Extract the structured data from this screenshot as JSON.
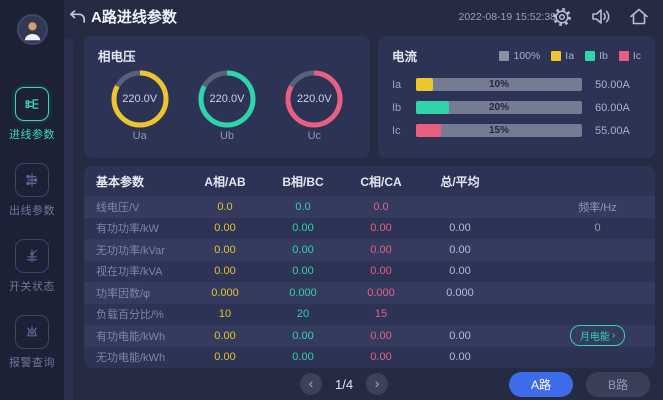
{
  "colors": {
    "yellow": "#edc52e",
    "teal": "#31d3ab",
    "pink": "#e85f82",
    "track_gray": "#747b92",
    "legend_gray": "#8a90a4",
    "accent_blue": "#3d6bea",
    "active_teal": "#3bd8b0"
  },
  "header": {
    "title": "A路进线参数",
    "timestamp": "2022-08-19 15:52:38"
  },
  "sidebar": {
    "items": [
      {
        "label": "进线参数",
        "active": true
      },
      {
        "label": "出线参数",
        "active": false
      },
      {
        "label": "开关状态",
        "active": false
      },
      {
        "label": "报警查询",
        "active": false
      }
    ]
  },
  "voltage_panel": {
    "title": "相电压",
    "gauges": [
      {
        "label": "Ua",
        "value": "220.0V",
        "color": "#edc52e"
      },
      {
        "label": "Ub",
        "value": "220.0V",
        "color": "#31d3ab"
      },
      {
        "label": "Uc",
        "value": "220.0V",
        "color": "#e85f82"
      }
    ]
  },
  "current_panel": {
    "title": "电流",
    "legend": [
      {
        "label": "100%",
        "color": "#8a90a4"
      },
      {
        "label": "Ia",
        "color": "#edc52e"
      },
      {
        "label": "Ib",
        "color": "#31d3ab"
      },
      {
        "label": "Ic",
        "color": "#e85f82"
      }
    ],
    "bars": [
      {
        "label": "Ia",
        "percent": 10,
        "percent_label": "10%",
        "value": "50.00A",
        "color": "#edc52e"
      },
      {
        "label": "Ib",
        "percent": 20,
        "percent_label": "20%",
        "value": "60.00A",
        "color": "#31d3ab"
      },
      {
        "label": "Ic",
        "percent": 15,
        "percent_label": "15%",
        "value": "55.00A",
        "color": "#e85f82"
      }
    ]
  },
  "table": {
    "headers": [
      "基本参数",
      "A相/AB",
      "B相/BC",
      "C相/CA",
      "总/平均"
    ],
    "rows": [
      {
        "label": "线电压/V",
        "a": "0.0",
        "b": "0.0",
        "c": "0.0",
        "total": "",
        "extra": "频率/Hz"
      },
      {
        "label": "有功功率/kW",
        "a": "0.00",
        "b": "0.00",
        "c": "0.00",
        "total": "0.00",
        "extra": "0"
      },
      {
        "label": "无功功率/kVar",
        "a": "0.00",
        "b": "0.00",
        "c": "0.00",
        "total": "0.00",
        "extra": ""
      },
      {
        "label": "视在功率/kVA",
        "a": "0.00",
        "b": "0.00",
        "c": "0.00",
        "total": "0.00",
        "extra": ""
      },
      {
        "label": "功率因数/φ",
        "a": "0.000",
        "b": "0.000",
        "c": "0.000",
        "total": "0.000",
        "extra": ""
      },
      {
        "label": "负载百分比/%",
        "a": "10",
        "b": "20",
        "c": "15",
        "total": "",
        "extra": ""
      },
      {
        "label": "有功电能/kWh",
        "a": "0.00",
        "b": "0.00",
        "c": "0.00",
        "total": "0.00",
        "extra": ""
      },
      {
        "label": "无功电能/kWh",
        "a": "0.00",
        "b": "0.00",
        "c": "0.00",
        "total": "0.00",
        "extra": ""
      }
    ],
    "month_energy_button": {
      "label": "月电能",
      "arrow": "›"
    }
  },
  "footer": {
    "page": "1/4",
    "prev": "‹",
    "next": "›",
    "route_buttons": [
      {
        "label": "A路",
        "active": true
      },
      {
        "label": "B路",
        "active": false
      }
    ]
  }
}
